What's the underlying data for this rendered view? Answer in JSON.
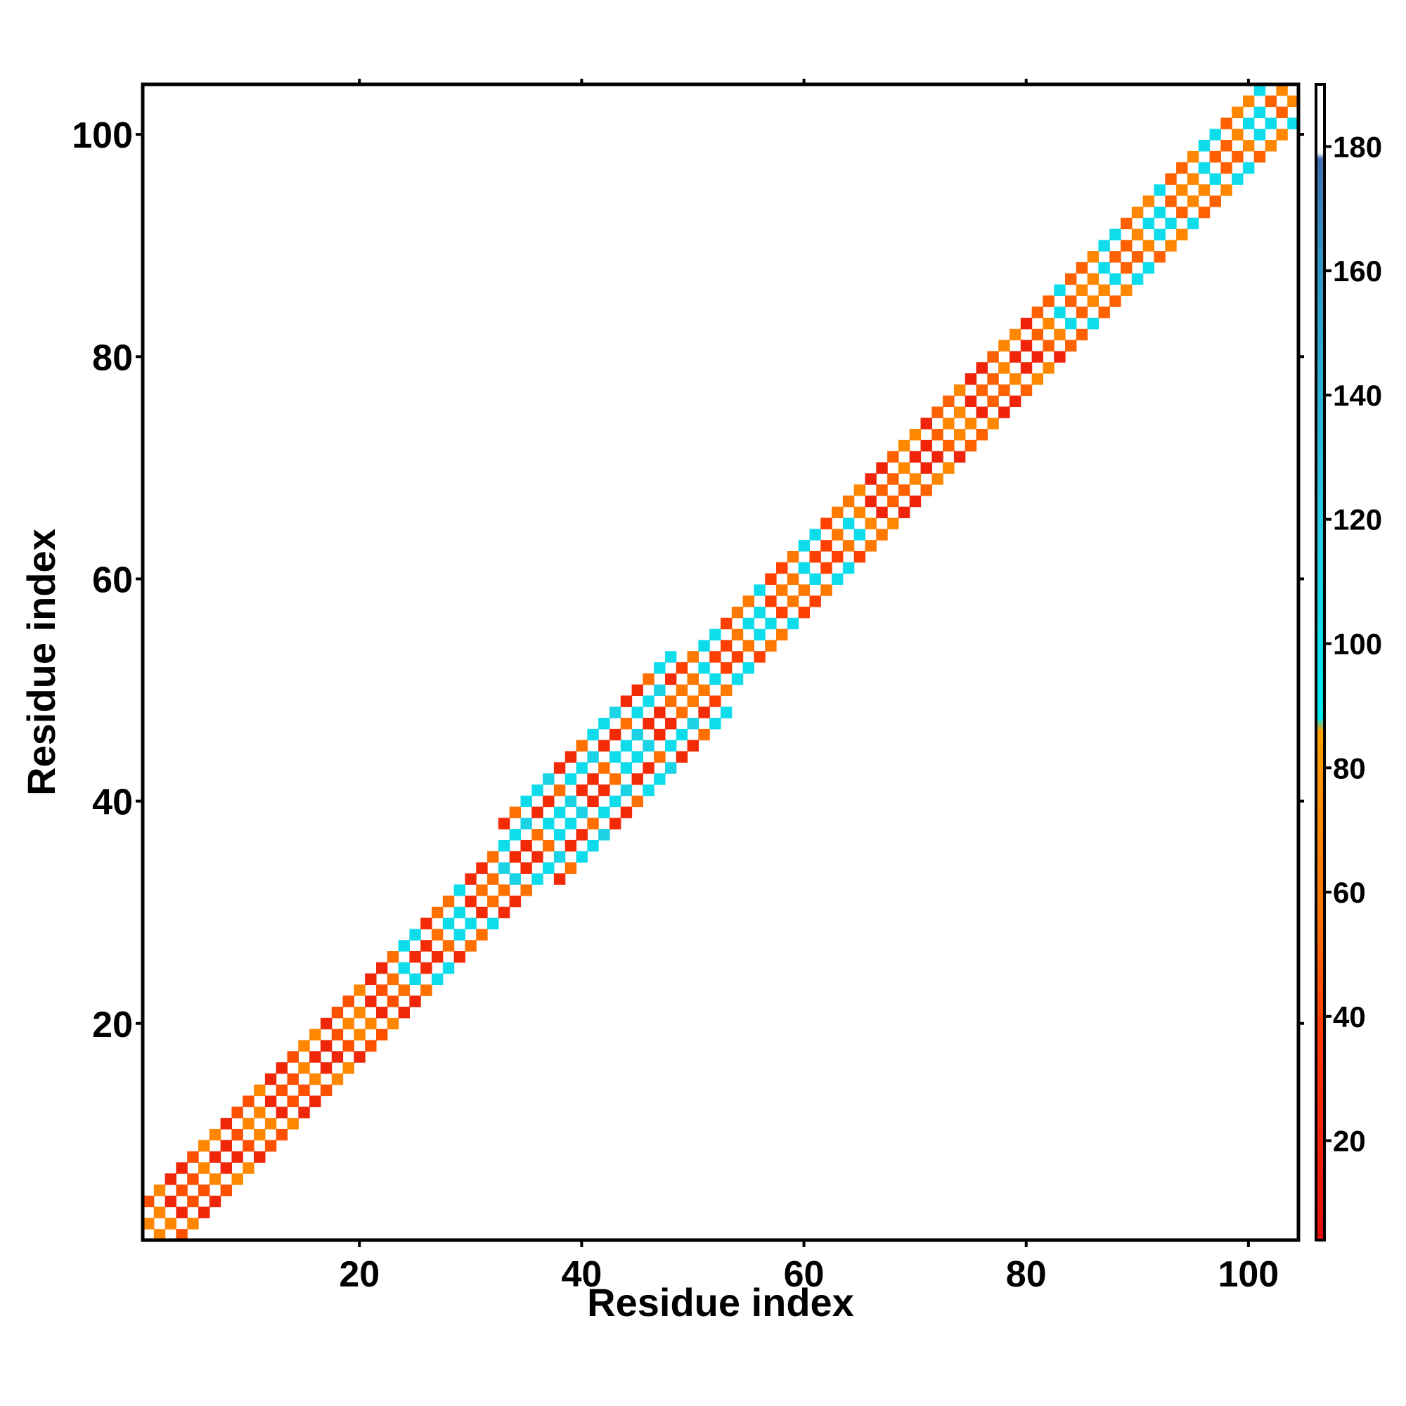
{
  "chart_data": {
    "type": "heatmap",
    "title": "",
    "xlabel": "Residue index",
    "ylabel": "Residue index",
    "xlim": [
      1,
      104
    ],
    "ylim": [
      1,
      104
    ],
    "x_ticks": [
      20,
      40,
      60,
      80,
      100
    ],
    "y_ticks": [
      20,
      40,
      60,
      80,
      100
    ],
    "grid": false,
    "n_residues": 104,
    "colorbar": {
      "ticks": [
        20,
        40,
        60,
        80,
        100,
        120,
        140,
        160,
        180
      ],
      "range": [
        4,
        190
      ],
      "stops": [
        {
          "value": 4,
          "color": "#e01010"
        },
        {
          "value": 38,
          "color": "#ff3a00"
        },
        {
          "value": 55,
          "color": "#ff7000"
        },
        {
          "value": 86,
          "color": "#ffa000"
        },
        {
          "value": 88,
          "color": "#00e8f0"
        },
        {
          "value": 120,
          "color": "#28c8e0"
        },
        {
          "value": 160,
          "color": "#3098c8"
        },
        {
          "value": 178,
          "color": "#4070b0"
        },
        {
          "value": 179,
          "color": "#ffffff"
        },
        {
          "value": 190,
          "color": "#ffffff"
        }
      ]
    },
    "bands": [
      {
        "from": 1,
        "to": 22,
        "width": 4,
        "values": [
          22,
          45,
          70
        ]
      },
      {
        "from": 23,
        "to": 32,
        "width": 4,
        "values": [
          25,
          55,
          100
        ]
      },
      {
        "from": 33,
        "to": 48,
        "width": 5,
        "values": [
          25,
          55,
          100,
          110
        ]
      },
      {
        "from": 49,
        "to": 64,
        "width": 4,
        "values": [
          40,
          60,
          100
        ]
      },
      {
        "from": 65,
        "to": 82,
        "width": 4,
        "values": [
          20,
          50,
          70
        ]
      },
      {
        "from": 83,
        "to": 104,
        "width": 4,
        "values": [
          50,
          70,
          100
        ]
      }
    ]
  }
}
